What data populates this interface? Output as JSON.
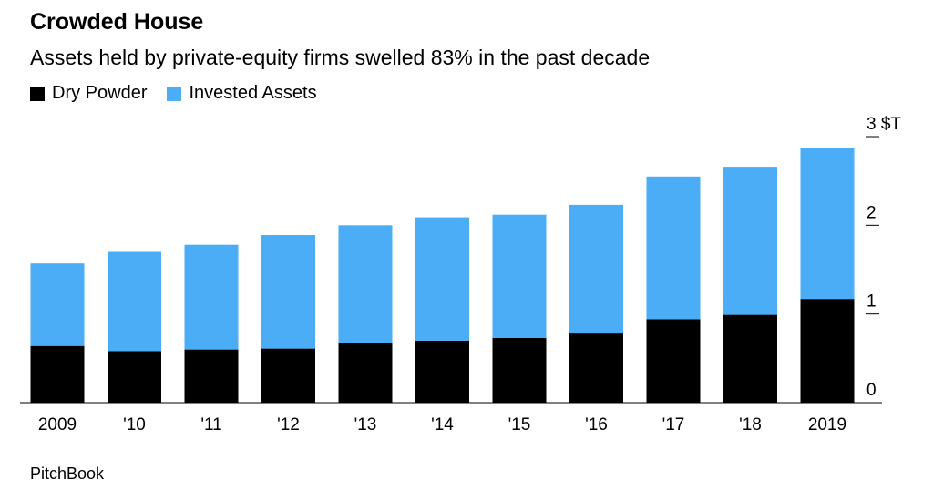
{
  "header": {
    "title": "Crowded House",
    "subtitle": "Assets held by private-equity firms swelled 83% in the past decade"
  },
  "legend": [
    {
      "label": "Dry Powder",
      "color": "#000000"
    },
    {
      "label": "Invested Assets",
      "color": "#4aadf6"
    }
  ],
  "source": "PitchBook",
  "chart_data": {
    "type": "bar",
    "stacked": true,
    "categories": [
      "2009",
      "'10",
      "'11",
      "'12",
      "'13",
      "'14",
      "'15",
      "'16",
      "'17",
      "'18",
      "2019"
    ],
    "series": [
      {
        "name": "Dry Powder",
        "color": "#000000",
        "values": [
          0.64,
          0.58,
          0.6,
          0.61,
          0.67,
          0.7,
          0.73,
          0.78,
          0.94,
          0.99,
          1.17
        ]
      },
      {
        "name": "Invested Assets",
        "color": "#4aadf6",
        "values": [
          0.93,
          1.12,
          1.18,
          1.28,
          1.33,
          1.39,
          1.39,
          1.45,
          1.61,
          1.67,
          1.7
        ]
      }
    ],
    "ylim": [
      0,
      3
    ],
    "yticks": [
      0,
      1,
      2,
      3
    ],
    "ytick_labels": [
      "0",
      "1",
      "2",
      "3 $T"
    ],
    "y_axis_side": "right",
    "grid": false,
    "legend_position": "top-left"
  }
}
